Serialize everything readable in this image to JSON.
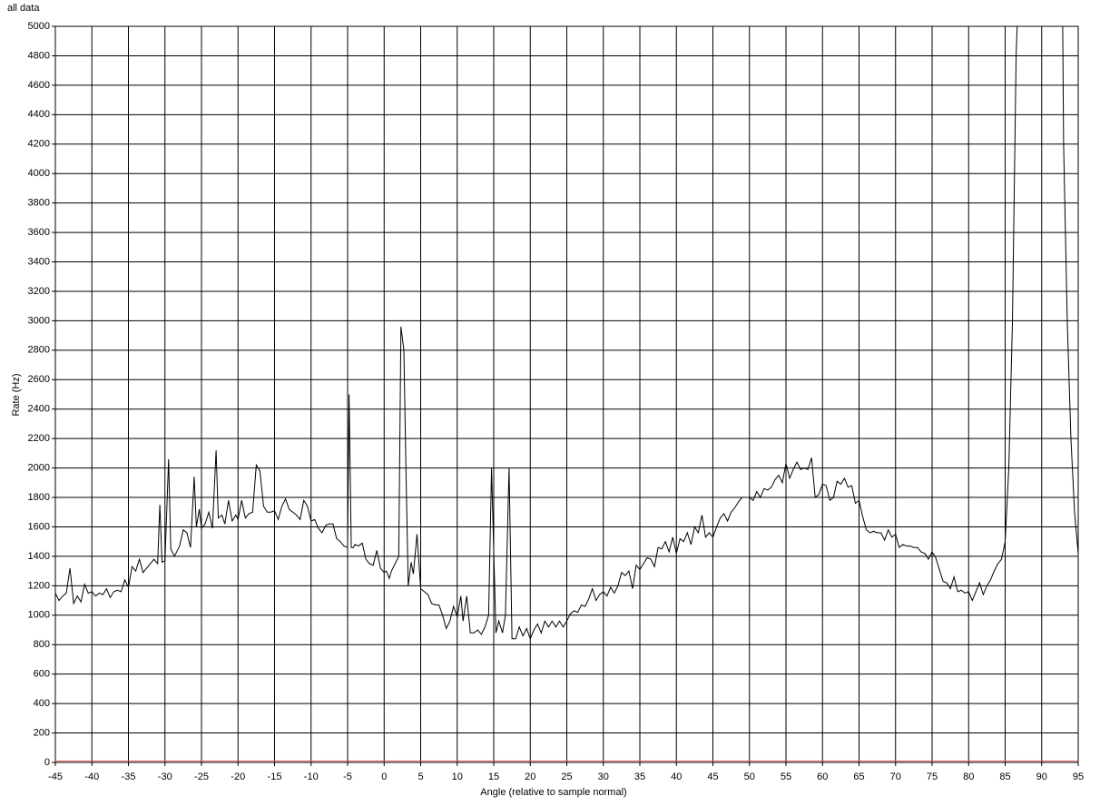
{
  "chart_data": {
    "type": "line",
    "title": "all data",
    "x_label": "Angle (relative to sample normal)",
    "y_label": "Rate (Hz)",
    "xlim": [
      -45,
      95
    ],
    "ylim": [
      0,
      5000
    ],
    "xticks": [
      -45,
      -40,
      -35,
      -30,
      -25,
      -20,
      -15,
      -10,
      -5,
      0,
      5,
      10,
      15,
      20,
      25,
      30,
      35,
      40,
      45,
      50,
      55,
      60,
      65,
      70,
      75,
      80,
      85,
      90,
      95
    ],
    "yticks": [
      0,
      200,
      400,
      600,
      800,
      1000,
      1200,
      1400,
      1600,
      1800,
      2000,
      2200,
      2400,
      2600,
      2800,
      3000,
      3200,
      3400,
      3600,
      3800,
      4000,
      4200,
      4400,
      4600,
      4800,
      5000
    ],
    "grid": true,
    "series": [
      {
        "color": "#000000",
        "x": [
          -45,
          -44.5,
          -44,
          -43.5,
          -43,
          -42.5,
          -42,
          -41.5,
          -41,
          -40.5,
          -40,
          -39.5,
          -39,
          -38.5,
          -38,
          -37.5,
          -37,
          -36.5,
          -36,
          -35.5,
          -35,
          -34.5,
          -34,
          -33.5,
          -33,
          -32.5,
          -32,
          -31.5,
          -31,
          -30.7,
          -30.4,
          -30,
          -29.5,
          -29.2,
          -28.7,
          -28,
          -27.5,
          -27,
          -26.5,
          -26,
          -25.7,
          -25.3,
          -25,
          -24.5,
          -24,
          -23.5,
          -23,
          -22.7,
          -22.2,
          -21.8,
          -21.3,
          -20.8,
          -20.3,
          -20,
          -19.5,
          -19,
          -18.5,
          -18,
          -17.5,
          -17,
          -16.5,
          -16,
          -15.5,
          -15,
          -14.5,
          -14,
          -13.5,
          -13,
          -12.5,
          -12,
          -11.5,
          -11,
          -10.5,
          -10,
          -9.5,
          -9,
          -8.5,
          -8,
          -7.5,
          -7,
          -6.5,
          -6,
          -5.5,
          -5,
          -4.8,
          -4.5,
          -4.2,
          -4,
          -3.5,
          -3,
          -2.5,
          -2,
          -1.5,
          -1,
          -0.5,
          0,
          0.3,
          0.7,
          1,
          1.5,
          2,
          2.3,
          2.7,
          3,
          3.3,
          3.7,
          4,
          4.5,
          5,
          5.5,
          6,
          6.5,
          7,
          7.5,
          8,
          8.5,
          9,
          9.5,
          10,
          10.5,
          10.8,
          11.3,
          11.8,
          12.3,
          12.8,
          13.3,
          13.8,
          14.3,
          14.7,
          15.3,
          15.7,
          16.2,
          16.6,
          17.1,
          17.5,
          18,
          18.5,
          19,
          19.5,
          20,
          20.5,
          21,
          21.5,
          22,
          22.5,
          23,
          23.5,
          24,
          24.5,
          25,
          25.5,
          26,
          26.5,
          27,
          27.5,
          28,
          28.5,
          29,
          29.5,
          30,
          30.5,
          31,
          31.5,
          32,
          32.5,
          33,
          33.5,
          34,
          34.5,
          35,
          35.5,
          36,
          36.5,
          37,
          37.5,
          38,
          38.5,
          39,
          39.5,
          40,
          40.5,
          41,
          41.5,
          42,
          42.5,
          43,
          43.5,
          44,
          44.5,
          45,
          45.5,
          46,
          46.5,
          47,
          47.5,
          48,
          48.5,
          49,
          49.5,
          50,
          50.5,
          51,
          51.5,
          52,
          52.5,
          53,
          53.5,
          54,
          54.5,
          55,
          55.5,
          56,
          56.5,
          57,
          57.5,
          58,
          58.5,
          59,
          59.5,
          60,
          60.5,
          61,
          61.5,
          62,
          62.5,
          63,
          63.5,
          64,
          64.5,
          65,
          65.5,
          66,
          66.5,
          67,
          67.5,
          68,
          68.5,
          69,
          69.5,
          70,
          70.5,
          71,
          71.5,
          72,
          72.5,
          73,
          73.5,
          74,
          74.5,
          75,
          75.5,
          76,
          76.5,
          77,
          77.5,
          78,
          78.5,
          79,
          79.5,
          80,
          80.5,
          81,
          81.5,
          82,
          82.5,
          83,
          83.5,
          84,
          84.5,
          85,
          85.5,
          86,
          86.5,
          87,
          92.8,
          93,
          93.5,
          94,
          94.5,
          95
        ],
        "values": [
          1150,
          1100,
          1130,
          1150,
          1320,
          1080,
          1130,
          1090,
          1210,
          1150,
          1160,
          1130,
          1150,
          1140,
          1180,
          1120,
          1160,
          1170,
          1160,
          1240,
          1190,
          1330,
          1300,
          1380,
          1290,
          1320,
          1350,
          1380,
          1350,
          1750,
          1360,
          1370,
          2060,
          1450,
          1400,
          1470,
          1580,
          1560,
          1460,
          1940,
          1600,
          1720,
          1590,
          1620,
          1700,
          1590,
          2120,
          1660,
          1680,
          1620,
          1780,
          1640,
          1680,
          1650,
          1780,
          1660,
          1690,
          1700,
          2020,
          1980,
          1740,
          1700,
          1700,
          1710,
          1650,
          1740,
          1790,
          1720,
          1700,
          1680,
          1650,
          1780,
          1740,
          1640,
          1650,
          1590,
          1560,
          1610,
          1620,
          1620,
          1520,
          1500,
          1470,
          1460,
          2500,
          1460,
          1460,
          1480,
          1470,
          1490,
          1380,
          1350,
          1340,
          1440,
          1320,
          1290,
          1300,
          1250,
          1300,
          1350,
          1400,
          2960,
          2800,
          1950,
          1200,
          1360,
          1280,
          1550,
          1180,
          1160,
          1140,
          1080,
          1070,
          1070,
          1000,
          910,
          960,
          1060,
          990,
          1130,
          960,
          1130,
          880,
          880,
          900,
          870,
          920,
          1000,
          2000,
          880,
          960,
          880,
          1000,
          2000,
          840,
          840,
          920,
          860,
          910,
          840,
          900,
          940,
          880,
          960,
          920,
          960,
          920,
          960,
          920,
          960,
          1010,
          1030,
          1020,
          1070,
          1060,
          1110,
          1180,
          1100,
          1140,
          1160,
          1130,
          1190,
          1150,
          1200,
          1290,
          1270,
          1300,
          1180,
          1340,
          1310,
          1350,
          1390,
          1380,
          1330,
          1460,
          1450,
          1500,
          1430,
          1530,
          1420,
          1520,
          1500,
          1560,
          1480,
          1600,
          1560,
          1680,
          1530,
          1560,
          1530,
          1600,
          1660,
          1690,
          1640,
          1700,
          1730,
          1770,
          1800,
          1800,
          1800,
          1780,
          1840,
          1800,
          1860,
          1850,
          1870,
          1920,
          1950,
          1900,
          2030,
          1930,
          1990,
          2040,
          1990,
          2000,
          1990,
          2070,
          1800,
          1820,
          1890,
          1880,
          1780,
          1800,
          1910,
          1890,
          1930,
          1870,
          1880,
          1760,
          1780,
          1670,
          1580,
          1560,
          1570,
          1560,
          1560,
          1510,
          1580,
          1530,
          1550,
          1460,
          1480,
          1470,
          1470,
          1460,
          1460,
          1430,
          1420,
          1380,
          1430,
          1390,
          1310,
          1230,
          1220,
          1180,
          1260,
          1160,
          1170,
          1150,
          1160,
          1100,
          1160,
          1220,
          1140,
          1200,
          1240,
          1300,
          1350,
          1380,
          1500,
          2000,
          3000,
          4800,
          5500,
          5500,
          4200,
          3000,
          2200,
          1700,
          1420
        ]
      },
      {
        "color": "#d9534f",
        "x": [
          -45,
          95
        ],
        "values": [
          10,
          10
        ]
      }
    ]
  }
}
